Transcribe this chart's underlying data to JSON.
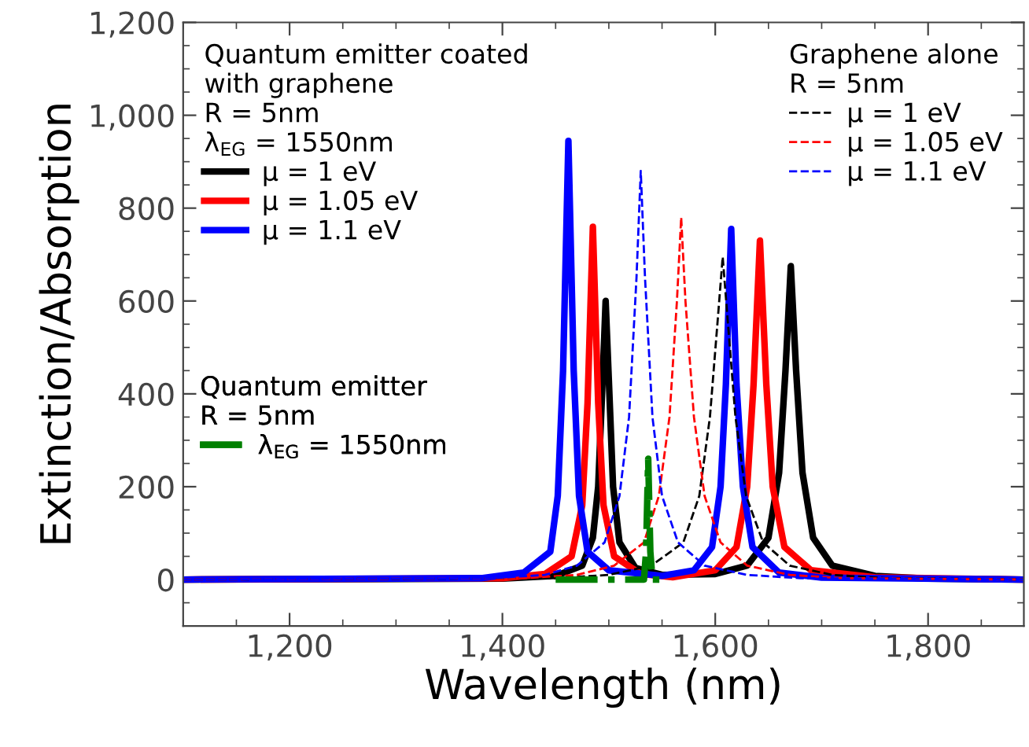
{
  "chart_data": {
    "type": "line",
    "xlabel": "Wavelength (nm)",
    "ylabel": "Extinction/Absorption",
    "xlim": [
      1100,
      1890
    ],
    "ylim": [
      -100,
      1200
    ],
    "xticks": [
      {
        "value": 1200,
        "label": "1,200"
      },
      {
        "value": 1400,
        "label": "1,400"
      },
      {
        "value": 1600,
        "label": "1,600"
      },
      {
        "value": 1800,
        "label": "1,800"
      }
    ],
    "yticks": [
      0,
      200,
      400,
      600,
      800,
      {
        "value": 1000,
        "label": "1,000"
      },
      {
        "value": 1200,
        "label": "1,200"
      }
    ],
    "grid": false,
    "marker": "none",
    "legend": [
      "top left",
      "top right",
      "center left"
    ],
    "legend_title": [
      "Quantum emitter coated\nwith graphene\nR = 5nm\nλ$_{EG}$ = 1550nm",
      "Graphene alone\nR = 5nm",
      "Quantum emitter\nR = 5nm"
    ],
    "series": [
      {
        "name": "μ = 1 eV",
        "line_style": "solid",
        "color": "#000000",
        "x": [
          1100,
          1400,
          1450,
          1475,
          1485,
          1490,
          1494,
          1497,
          1500,
          1504,
          1510,
          1525,
          1550,
          1600,
          1630,
          1650,
          1660,
          1666,
          1671,
          1676,
          1682,
          1692,
          1710,
          1750,
          1800,
          1890
        ],
        "values": [
          0,
          2,
          8,
          30,
          90,
          200,
          420,
          600,
          430,
          200,
          80,
          25,
          10,
          12,
          30,
          90,
          230,
          450,
          675,
          450,
          230,
          90,
          30,
          8,
          2,
          0
        ]
      },
      {
        "name": "μ = 1.05 eV",
        "line_style": "solid",
        "color": "#ff0000",
        "x": [
          1100,
          1400,
          1440,
          1465,
          1475,
          1480,
          1485,
          1490,
          1495,
          1505,
          1530,
          1560,
          1600,
          1620,
          1630,
          1636,
          1642,
          1648,
          1654,
          1665,
          1690,
          1750,
          1890
        ],
        "values": [
          0,
          3,
          12,
          50,
          160,
          380,
          760,
          380,
          160,
          50,
          12,
          5,
          20,
          70,
          200,
          420,
          730,
          420,
          200,
          70,
          20,
          5,
          0
        ]
      },
      {
        "name": "μ = 1.1 eV",
        "line_style": "solid",
        "color": "#0000ff",
        "x": [
          1100,
          1380,
          1420,
          1445,
          1452,
          1457,
          1462,
          1467,
          1472,
          1480,
          1500,
          1550,
          1580,
          1597,
          1605,
          1610,
          1615,
          1620,
          1626,
          1635,
          1660,
          1700,
          1890
        ],
        "values": [
          0,
          3,
          15,
          60,
          180,
          450,
          945,
          450,
          180,
          60,
          20,
          8,
          20,
          70,
          200,
          420,
          755,
          420,
          200,
          70,
          15,
          4,
          0
        ]
      },
      {
        "name": "μ = 1 eV",
        "line_style": "dashed",
        "color": "#000000",
        "x": [
          1100,
          1450,
          1500,
          1540,
          1570,
          1585,
          1595,
          1602,
          1607,
          1612,
          1619,
          1629,
          1645,
          1670,
          1710,
          1760,
          1890
        ],
        "values": [
          0,
          3,
          10,
          30,
          80,
          180,
          350,
          550,
          695,
          550,
          350,
          180,
          80,
          30,
          10,
          3,
          0
        ]
      },
      {
        "name": "μ = 1.05 eV",
        "line_style": "dashed",
        "color": "#ff0000",
        "x": [
          1100,
          1420,
          1470,
          1505,
          1533,
          1547,
          1557,
          1564,
          1568,
          1572,
          1580,
          1590,
          1605,
          1630,
          1670,
          1720,
          1890
        ],
        "values": [
          0,
          3,
          10,
          30,
          80,
          180,
          350,
          600,
          780,
          600,
          350,
          180,
          80,
          30,
          10,
          3,
          0
        ]
      },
      {
        "name": "μ = 1.1 eV",
        "line_style": "dashed",
        "color": "#0000ff",
        "x": [
          1100,
          1390,
          1440,
          1470,
          1496,
          1510,
          1519,
          1526,
          1530,
          1534,
          1541,
          1550,
          1565,
          1590,
          1630,
          1680,
          1890
        ],
        "values": [
          0,
          3,
          10,
          30,
          80,
          180,
          350,
          650,
          880,
          650,
          350,
          180,
          80,
          30,
          10,
          3,
          0
        ]
      },
      {
        "name": "λ$_{EG}$ = 1550nm",
        "line_style": "dashdot",
        "color": "#008000",
        "x": [
          1450,
          1533,
          1535,
          1537,
          1539,
          1541,
          1550
        ],
        "values": [
          0,
          0,
          60,
          260,
          60,
          0,
          0
        ]
      }
    ]
  }
}
